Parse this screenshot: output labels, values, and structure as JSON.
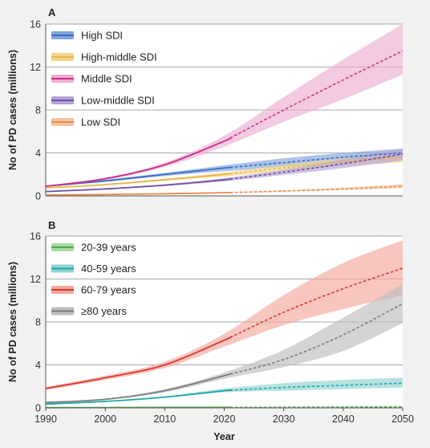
{
  "chart_data": [
    {
      "type": "line",
      "panel_label": "A",
      "ylabel": "No of PD cases (millions)",
      "xlabel": "",
      "xlim": [
        1990,
        2050
      ],
      "ylim": [
        0,
        16
      ],
      "y_ticks": [
        0,
        4,
        8,
        12,
        16
      ],
      "x_ticks": [],
      "grid": "horizontal",
      "legend_position": "top-left",
      "projection_start": 2021,
      "projection_style": "dashed",
      "x": [
        1990,
        2000,
        2010,
        2020,
        2030,
        2040,
        2050
      ],
      "series": [
        {
          "name": "High SDI",
          "color": "#3a6fc4",
          "band_color": "#7fa3dc",
          "values": [
            0.9,
            1.4,
            2.0,
            2.6,
            3.1,
            3.6,
            4.0
          ],
          "lower": [
            0.85,
            1.3,
            1.85,
            2.3,
            2.7,
            3.1,
            3.6
          ],
          "upper": [
            0.95,
            1.5,
            2.15,
            2.85,
            3.5,
            4.0,
            4.4
          ]
        },
        {
          "name": "High-middle SDI",
          "color": "#e9b648",
          "band_color": "#f3d48e",
          "values": [
            0.75,
            1.05,
            1.5,
            2.0,
            2.6,
            3.2,
            3.6
          ],
          "lower": [
            0.7,
            1.0,
            1.4,
            1.8,
            2.3,
            2.8,
            3.1
          ],
          "upper": [
            0.8,
            1.1,
            1.6,
            2.2,
            2.9,
            3.5,
            4.0
          ]
        },
        {
          "name": "Middle SDI",
          "color": "#cf2a8a",
          "band_color": "#ebaed1",
          "values": [
            0.9,
            1.6,
            2.9,
            5.1,
            8.0,
            10.8,
            13.5
          ],
          "lower": [
            0.85,
            1.5,
            2.7,
            4.6,
            6.9,
            9.0,
            11.3
          ],
          "upper": [
            0.95,
            1.7,
            3.1,
            5.6,
            9.2,
            12.7,
            16.0
          ]
        },
        {
          "name": "Low-middle SDI",
          "color": "#6e4ea8",
          "band_color": "#b3a3d6",
          "values": [
            0.4,
            0.65,
            1.0,
            1.5,
            2.2,
            3.0,
            3.9
          ],
          "lower": [
            0.38,
            0.6,
            0.92,
            1.35,
            1.95,
            2.6,
            3.3
          ],
          "upper": [
            0.42,
            0.7,
            1.08,
            1.65,
            2.45,
            3.4,
            4.4
          ]
        },
        {
          "name": "Low SDI",
          "color": "#ea8a4c",
          "band_color": "#f5c4a0",
          "values": [
            0.08,
            0.13,
            0.2,
            0.3,
            0.45,
            0.65,
            0.9
          ],
          "lower": [
            0.07,
            0.11,
            0.17,
            0.26,
            0.38,
            0.54,
            0.72
          ],
          "upper": [
            0.09,
            0.15,
            0.23,
            0.34,
            0.52,
            0.78,
            1.08
          ]
        }
      ]
    },
    {
      "type": "line",
      "panel_label": "B",
      "ylabel": "No of PD cases (millions)",
      "xlabel": "Year",
      "xlim": [
        1990,
        2050
      ],
      "ylim": [
        0,
        16
      ],
      "y_ticks": [
        0,
        4,
        8,
        12,
        16
      ],
      "x_ticks": [
        1990,
        2000,
        2010,
        2020,
        2030,
        2040,
        2050
      ],
      "grid": "horizontal",
      "legend_position": "top-left",
      "projection_start": 2021,
      "projection_style": "dashed",
      "x": [
        1990,
        2000,
        2010,
        2020,
        2030,
        2040,
        2050
      ],
      "series": [
        {
          "name": "20-39 years",
          "color": "#4fae4c",
          "band_color": "#a9d8a3",
          "values": [
            0.02,
            0.03,
            0.04,
            0.05,
            0.06,
            0.08,
            0.1
          ],
          "lower": [
            0.015,
            0.025,
            0.03,
            0.04,
            0.05,
            0.06,
            0.07
          ],
          "upper": [
            0.025,
            0.035,
            0.05,
            0.06,
            0.08,
            0.1,
            0.13
          ]
        },
        {
          "name": "40-59 years",
          "color": "#1aa8a8",
          "band_color": "#8fd3d1",
          "values": [
            0.35,
            0.6,
            1.0,
            1.6,
            1.9,
            2.1,
            2.3
          ],
          "lower": [
            0.33,
            0.56,
            0.93,
            1.45,
            1.6,
            1.75,
            1.9
          ],
          "upper": [
            0.37,
            0.64,
            1.07,
            1.8,
            2.3,
            2.6,
            2.8
          ]
        },
        {
          "name": "60-79 years",
          "color": "#d8382f",
          "band_color": "#f3a89c",
          "values": [
            1.8,
            2.8,
            4.0,
            6.3,
            8.9,
            11.1,
            13.0
          ],
          "lower": [
            1.65,
            2.6,
            3.7,
            5.7,
            7.7,
            9.2,
            10.5
          ],
          "upper": [
            1.95,
            3.0,
            4.3,
            6.9,
            10.5,
            13.5,
            15.6
          ]
        },
        {
          "name": "≥80 years",
          "color": "#7c7c7c",
          "band_color": "#bdbdbd",
          "values": [
            0.5,
            0.8,
            1.6,
            3.0,
            4.5,
            6.8,
            9.7
          ],
          "lower": [
            0.46,
            0.75,
            1.45,
            2.7,
            3.8,
            5.3,
            7.9
          ],
          "upper": [
            0.54,
            0.85,
            1.75,
            3.3,
            5.4,
            8.4,
            11.5
          ]
        }
      ]
    }
  ]
}
